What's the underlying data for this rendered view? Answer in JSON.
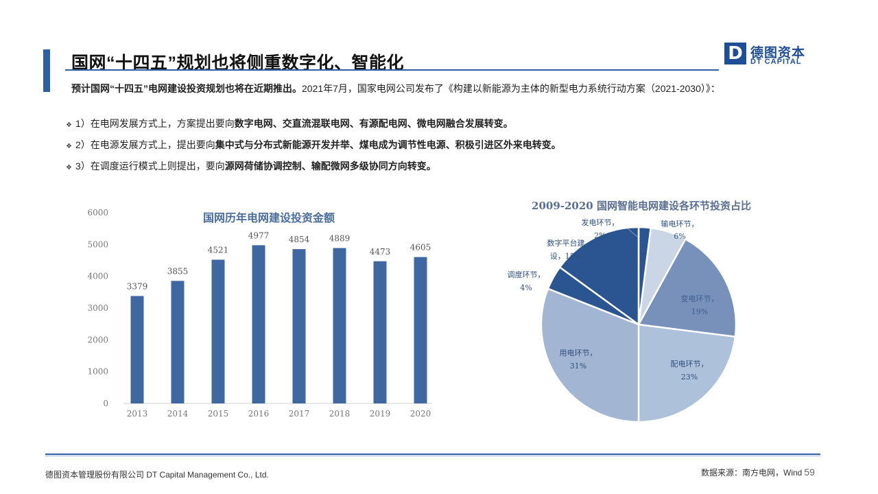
{
  "header": {
    "title": "国网“十四五”规划也将侧重数字化、智能化",
    "logo_cn": "德图资本",
    "logo_en": "DT CAPITAL",
    "logo_letter": "D"
  },
  "intro": {
    "bold": "预计国网“十四五”电网建设投资规划也将在近期推出。",
    "text": "2021年7月，国家电网公司发布了《构建以新能源为主体的新型电力系统行动方案（2021-2030）》："
  },
  "bullets": [
    {
      "prefix": "1）在电网发展方式上，方案提出要向",
      "bold": "数字电网、交直流混联电网、有源配电网、微电网融合发展转变。"
    },
    {
      "prefix": "2）在电源发展方式上，提出要向",
      "bold": "集中式与分布式新能源开发并举、煤电成为调节性电源、积极引进区外来电转变。"
    },
    {
      "prefix": "3）在调度运行模式上则提出，要向",
      "bold": "源网荷储协调控制、输配微网多级协同方向转变。"
    }
  ],
  "chart_data": [
    {
      "type": "bar",
      "title": "国网历年电网建设投资金额",
      "categories": [
        "2013",
        "2014",
        "2015",
        "2016",
        "2017",
        "2018",
        "2019",
        "2020"
      ],
      "values": [
        3379,
        3855,
        4521,
        4977,
        4854,
        4889,
        4473,
        4605
      ],
      "ylim": [
        0,
        6000
      ],
      "yticks": [
        0,
        1000,
        2000,
        3000,
        4000,
        5000,
        6000
      ],
      "grid": false,
      "color": "#3f68a0"
    },
    {
      "type": "pie",
      "title": "2009-2020 国网智能电网建设各环节投资占比",
      "labels": [
        "发电环节，2%",
        "输电环节，6%",
        "变电环节，19%",
        "配电环节，23%",
        "用电环节，31%",
        "调度环节，4%",
        "数字平台建设，15%"
      ],
      "values": [
        2,
        6,
        19,
        23,
        31,
        4,
        15
      ],
      "colors": [
        "#2b5590",
        "#cad6e6",
        "#7791bb",
        "#aec1da",
        "#a2b5d3",
        "#2b5590",
        "#2b5590"
      ]
    }
  ],
  "pie_labels": {
    "fa_a": "发电环节，",
    "fa_b": "2%",
    "shu_a": "输电环节，",
    "shu_b": "6%",
    "bian_a": "变电环节，",
    "bian_b": "19%",
    "pei_a": "配电环节，",
    "pei_b": "23%",
    "yong_a": "用电环节，",
    "yong_b": "31%",
    "diao_a": "调度环节，",
    "diao_b": "4%",
    "shuzi_a": "数字平台建",
    "shuzi_b": "设，15%"
  },
  "footer": {
    "company": "德图资本管理股份有限公司 DT Capital Management Co., Ltd.",
    "source": "数据来源：南方电网，Wind",
    "page": "59"
  }
}
